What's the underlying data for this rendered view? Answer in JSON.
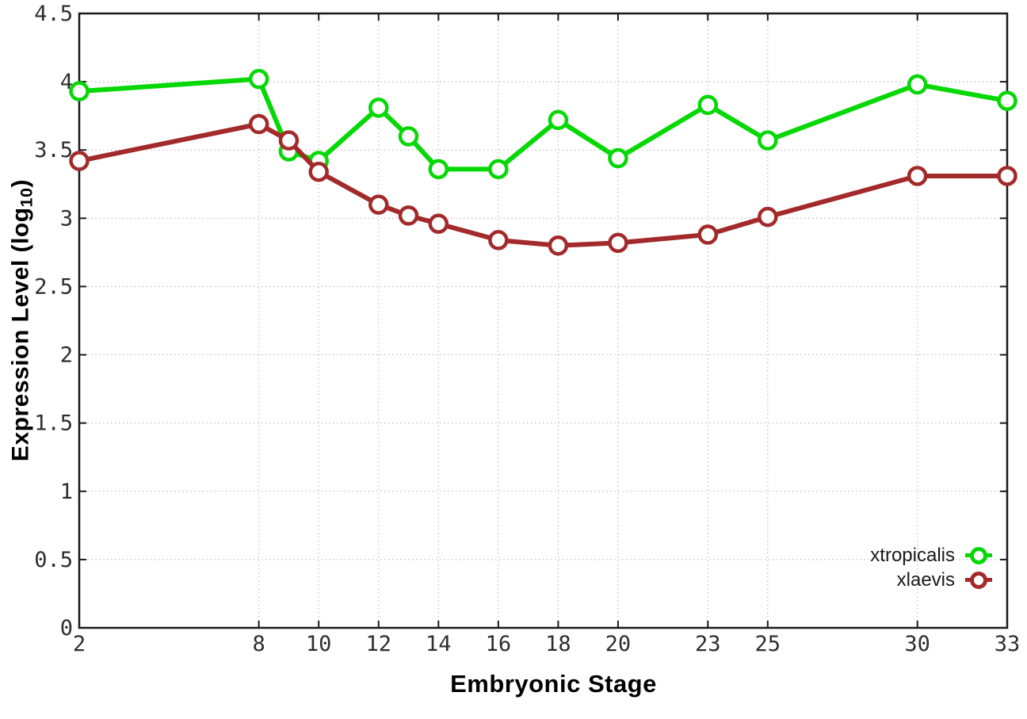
{
  "figure": {
    "background": "#ffffff"
  },
  "chart_data": {
    "type": "line",
    "title": "",
    "xlabel": "Embryonic Stage",
    "ylabel": {
      "prefix": "Expression Level (log",
      "sub": "10",
      "suffix": ")"
    },
    "xlim": [
      2,
      33
    ],
    "ylim": [
      0,
      4.5
    ],
    "grid": true,
    "grid_style": "dotted",
    "legend_position": "inside-bottom-right",
    "x": [
      2,
      8,
      9,
      10,
      12,
      13,
      14,
      16,
      18,
      20,
      23,
      25,
      30,
      33
    ],
    "x_ticks": [
      2,
      8,
      10,
      12,
      14,
      16,
      18,
      20,
      23,
      25,
      30,
      33
    ],
    "x_tick_labels": [
      "2",
      "8",
      "10",
      "12",
      "14",
      "16",
      "18",
      "20",
      "23",
      "25",
      "30",
      "33"
    ],
    "y_ticks": [
      0,
      0.5,
      1,
      1.5,
      2,
      2.5,
      3,
      3.5,
      4,
      4.5
    ],
    "y_tick_labels": [
      "0",
      "0.5",
      "1",
      "1.5",
      "2",
      "2.5",
      "3",
      "3.5",
      "4",
      "4.5"
    ],
    "series": [
      {
        "name": "xtropicalis",
        "color": "#05d805",
        "marker": "open-circle",
        "values": [
          3.93,
          4.02,
          3.49,
          3.42,
          3.81,
          3.6,
          3.36,
          3.36,
          3.72,
          3.44,
          3.83,
          3.57,
          3.98,
          3.86
        ]
      },
      {
        "name": "xlaevis",
        "color": "#a32a2a",
        "marker": "open-circle",
        "values": [
          3.42,
          3.69,
          3.57,
          3.34,
          3.1,
          3.02,
          2.96,
          2.84,
          2.8,
          2.82,
          2.88,
          3.01,
          3.31,
          3.31
        ]
      }
    ],
    "colors": {
      "grid": "#b3b3b3",
      "border": "#1a1a1a",
      "tick_label": "#2e2e2e",
      "axis_label": "#000000",
      "marker_fill": "#ffffff"
    }
  }
}
